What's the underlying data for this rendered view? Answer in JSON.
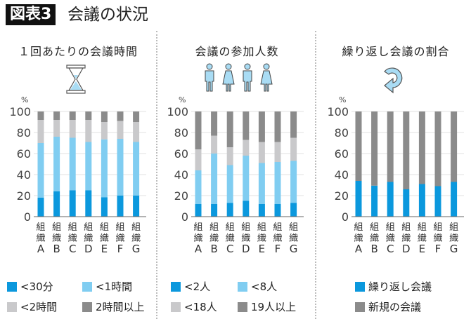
{
  "header": {
    "badge": "図表3",
    "title": "会議の状況"
  },
  "colors": {
    "dark_blue": "#0b98dd",
    "light_blue": "#80cdf1",
    "light_gray": "#c9c9cb",
    "dark_gray": "#8b8b8b"
  },
  "panels": [
    {
      "title": "１回あたりの会議時間",
      "icon": "hourglass-icon"
    },
    {
      "title": "会議の参加人数",
      "icon": "people-icon"
    },
    {
      "title": "繰り返し会議の割合",
      "icon": "circular-arrow-icon"
    }
  ],
  "chart_data": [
    {
      "type": "bar",
      "stacked": true,
      "title": "１回あたりの会議時間",
      "ylabel": "%",
      "ylim": [
        0,
        100
      ],
      "yticks": [
        0,
        20,
        40,
        60,
        80,
        100
      ],
      "grid": true,
      "legend": "bottom",
      "categories": [
        "組織A",
        "組織B",
        "組織C",
        "組織D",
        "組織E",
        "組織F",
        "組織G"
      ],
      "series": [
        {
          "name": "<30分",
          "color": "#0b98dd",
          "values": [
            18,
            24,
            25,
            25,
            18.5,
            20,
            20
          ]
        },
        {
          "name": "<1時間",
          "color": "#80cdf1",
          "values": [
            52,
            52,
            50,
            46,
            55,
            54,
            51
          ]
        },
        {
          "name": "<2時間",
          "color": "#c9c9cb",
          "values": [
            22,
            16,
            17,
            21,
            16.5,
            17,
            19
          ]
        },
        {
          "name": "2時間以上",
          "color": "#8b8b8b",
          "values": [
            8,
            8,
            8,
            8,
            10,
            9,
            10
          ]
        }
      ]
    },
    {
      "type": "bar",
      "stacked": true,
      "title": "会議の参加人数",
      "ylabel": "%",
      "ylim": [
        0,
        100
      ],
      "yticks": [
        0,
        20,
        40,
        60,
        80,
        100
      ],
      "grid": true,
      "legend": "bottom",
      "categories": [
        "組織A",
        "組織B",
        "組織C",
        "組織D",
        "組織E",
        "組織F",
        "組織G"
      ],
      "series": [
        {
          "name": "<2人",
          "color": "#0b98dd",
          "values": [
            12,
            12,
            13,
            15,
            12,
            12,
            13
          ]
        },
        {
          "name": "<8人",
          "color": "#80cdf1",
          "values": [
            32,
            48,
            36,
            43,
            39,
            40,
            40
          ]
        },
        {
          "name": "<18人",
          "color": "#c9c9cb",
          "values": [
            20,
            17,
            17,
            15,
            20,
            19,
            22
          ]
        },
        {
          "name": "19人以上",
          "color": "#8b8b8b",
          "values": [
            36,
            23,
            34,
            27,
            29,
            29,
            25
          ]
        }
      ]
    },
    {
      "type": "bar",
      "stacked": true,
      "title": "繰り返し会議の割合",
      "ylabel": "%",
      "ylim": [
        0,
        100
      ],
      "yticks": [
        0,
        20,
        40,
        60,
        80,
        100
      ],
      "grid": true,
      "legend": "bottom",
      "categories": [
        "組織A",
        "組織B",
        "組織C",
        "組織D",
        "組織E",
        "組織F",
        "組織G"
      ],
      "series": [
        {
          "name": "繰り返し会議",
          "color": "#0b98dd",
          "values": [
            34,
            29.5,
            33,
            26,
            31,
            29,
            33
          ]
        },
        {
          "name": "新規の会議",
          "color": "#8b8b8b",
          "values": [
            66,
            70.5,
            67,
            74,
            69,
            71,
            67
          ]
        }
      ]
    }
  ]
}
